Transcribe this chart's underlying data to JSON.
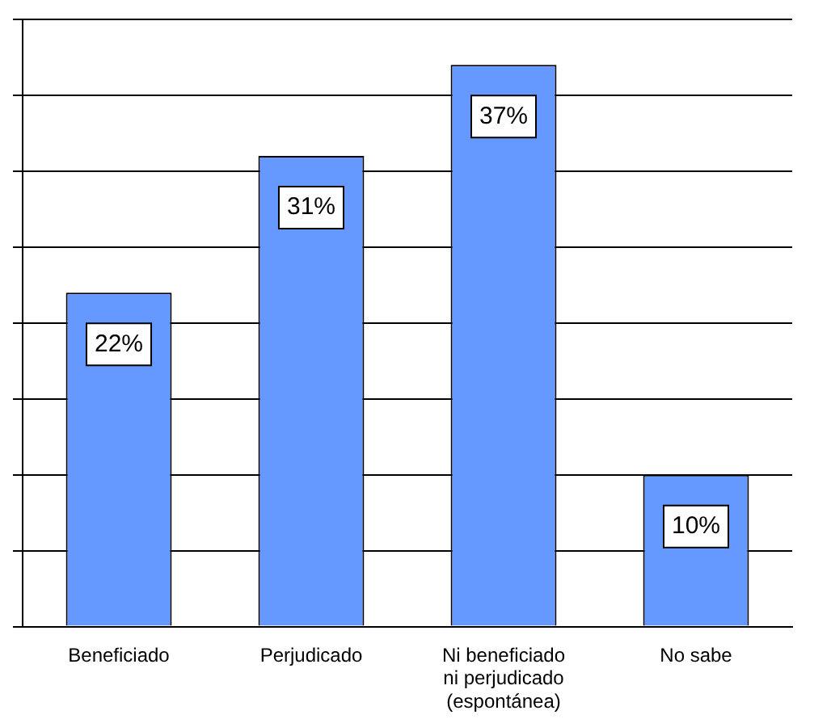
{
  "chart_data": {
    "type": "bar",
    "categories": [
      "Beneficiado",
      "Perjudicado",
      "Ni beneficiado ni perjudicado (espontánea)",
      "No sabe"
    ],
    "values": [
      22,
      31,
      37,
      10
    ],
    "value_labels": [
      "22%",
      "31%",
      "37%",
      "10%"
    ],
    "color": "#6699ff",
    "ylim": [
      0,
      40
    ],
    "yticks": [
      {
        "value": 0,
        "label": null
      },
      {
        "value": 5,
        "label": null
      },
      {
        "value": 10,
        "label": null
      },
      {
        "value": 15,
        "label": null
      },
      {
        "value": 20,
        "label": null
      },
      {
        "value": 25,
        "label": null
      },
      {
        "value": 30,
        "label": null
      },
      {
        "value": 35,
        "label": null
      },
      {
        "value": 40,
        "label": null
      }
    ],
    "grid": "y",
    "tick_labels": "x",
    "legend": false
  }
}
